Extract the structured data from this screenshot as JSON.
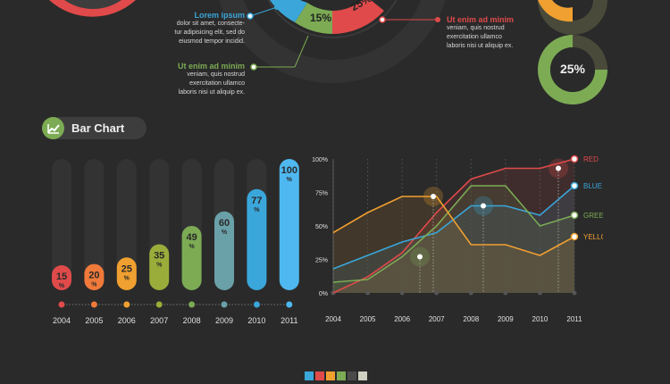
{
  "top": {
    "callout_left": {
      "title": "Lorem ipsum",
      "lines": [
        "dolor sit amet, consecte-",
        "tur adipisicing elit, sed do",
        "eiusmod tempor incidid."
      ],
      "color": "#3aa6d9"
    },
    "callout_center": {
      "title": "Ut enim ad minim",
      "lines": [
        "veniam, quis nostrud",
        "exercitation ullamco",
        "laboris nisi ut aliquip ex."
      ],
      "color": "#7cab54"
    },
    "callout_right": {
      "title": "Ut enim ad minim",
      "lines": [
        "veniam, quis nostrud",
        "exercitation ullamco",
        "laboris nisi ut aliquip ex."
      ],
      "color": "#e04a4a"
    },
    "donut_center": {
      "labels": [
        "15%",
        "25%"
      ],
      "colors": [
        "#3aa6d9",
        "#7cab54",
        "#e04a4a"
      ]
    },
    "donut_right": {
      "label": "25%",
      "value": 25,
      "colors": [
        "#7cab54",
        "#4a4a3a",
        "#f0a030"
      ]
    }
  },
  "section": {
    "title": "Bar Chart",
    "icon": "chart-icon",
    "accent": "#7cab54"
  },
  "chart_data": [
    {
      "type": "bar",
      "categories": [
        "2004",
        "2005",
        "2006",
        "2007",
        "2008",
        "2009",
        "2010",
        "2011"
      ],
      "values": [
        15,
        20,
        25,
        35,
        49,
        60,
        77,
        100
      ],
      "value_labels": [
        "15",
        "20",
        "25",
        "35",
        "49",
        "60",
        "77",
        "100"
      ],
      "unit": "%",
      "colors": [
        "#e04a4a",
        "#f07a3a",
        "#f0a030",
        "#9aad3a",
        "#7cab54",
        "#6aa0a8",
        "#3aa6d9",
        "#4fb8f0"
      ],
      "ylim": [
        0,
        100
      ]
    },
    {
      "type": "line",
      "x": [
        "2004",
        "2005",
        "2006",
        "2007",
        "2008",
        "2009",
        "2010",
        "2011"
      ],
      "yticks": [
        "0%",
        "25%",
        "50%",
        "75%",
        "100%"
      ],
      "ylim": [
        0,
        100
      ],
      "series": [
        {
          "name": "RED",
          "color": "#e04a4a",
          "values": [
            0,
            12,
            30,
            60,
            85,
            93,
            93,
            100
          ]
        },
        {
          "name": "BLUE",
          "color": "#3aa6d9",
          "values": [
            18,
            28,
            38,
            45,
            65,
            65,
            58,
            80
          ]
        },
        {
          "name": "GREEN",
          "color": "#7cab54",
          "values": [
            8,
            10,
            27,
            50,
            80,
            80,
            50,
            58
          ]
        },
        {
          "name": "YELLOW",
          "color": "#f0a030",
          "values": [
            45,
            60,
            72,
            72,
            36,
            36,
            28,
            42
          ]
        }
      ]
    }
  ],
  "footer": {
    "swatches": [
      "#3aa6d9",
      "#e04a4a",
      "#f0a030",
      "#7cab54",
      "#4a4a4a",
      "#cfcfc2"
    ]
  }
}
